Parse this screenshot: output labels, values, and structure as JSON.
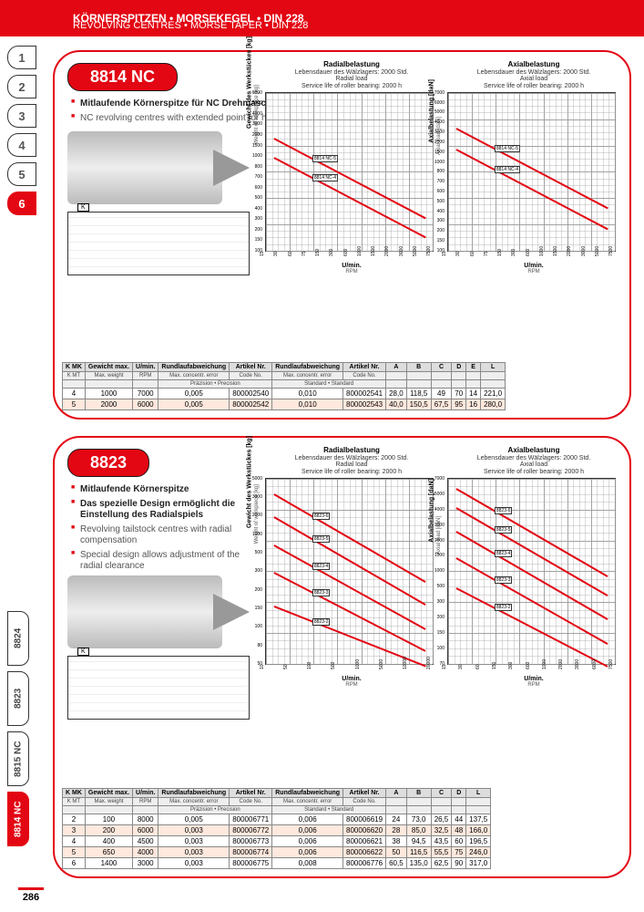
{
  "header": {
    "line1": "KÖRNERSPITZEN • MORSEKEGEL • DIN 228",
    "line2": "REVOLVING CENTRES • MORSE TAPER • DIN 228"
  },
  "nav_numbers": [
    "1",
    "2",
    "3",
    "4",
    "5",
    "6"
  ],
  "nav_selected": "6",
  "vtabs": [
    "8824",
    "8823",
    "8815 NC",
    "8814 NC"
  ],
  "vtab_selected": "8814 NC",
  "page_number": "286",
  "card1": {
    "badge": "8814 NC",
    "bullets": [
      {
        "text": "Mitlaufende Körnerspitze für NC Drehmaschinen",
        "bold": true
      },
      {
        "text": "NC revolving centres with extended point for high speeds",
        "bold": false
      }
    ],
    "chart_radial": {
      "title": "Radialbelastung",
      "sub1": "Lebensdauer des Wälzlagers: 2000 Std.",
      "sub2": "Radial load",
      "sub3": "Service life of roller bearing: 2000 h",
      "ylabel": "Gewicht des Werkstückes [kg]",
      "ylabel2": "Weight of workpiece [kg]",
      "xlabel": "U/min.",
      "xlabel2": "RPM",
      "yticks": [
        "100",
        "150",
        "200",
        "300",
        "400",
        "500",
        "600",
        "700",
        "800",
        "1000",
        "1500",
        "2000",
        "3000",
        "4000",
        "5000",
        "6000"
      ],
      "xticks": [
        "15",
        "30",
        "60",
        "75",
        "150",
        "300",
        "600",
        "1000",
        "1500",
        "2000",
        "3000",
        "5000",
        "7500"
      ],
      "series": [
        {
          "label": "8814 NC-5",
          "x0": 0.05,
          "y0": 0.28,
          "x1": 0.95,
          "y1": 0.78,
          "color": "#e30613"
        },
        {
          "label": "8814 NC-4",
          "x0": 0.05,
          "y0": 0.4,
          "x1": 0.95,
          "y1": 0.9,
          "color": "#e30613"
        }
      ]
    },
    "chart_axial": {
      "title": "Axialbelastung",
      "sub1": "Lebensdauer des Wälzlagers: 2000 Std.",
      "sub2": "Axial load",
      "sub3": "Service life of roller bearing: 2000 h",
      "ylabel": "Axialbelastung [daN]",
      "ylabel2": "Axial load [daN]",
      "xlabel": "U/min.",
      "xlabel2": "RPM",
      "yticks": [
        "100",
        "150",
        "200",
        "300",
        "400",
        "500",
        "600",
        "700",
        "800",
        "1000",
        "1500",
        "2000",
        "3000",
        "4000",
        "5000",
        "6000",
        "7000"
      ],
      "xticks": [
        "15",
        "30",
        "60",
        "75",
        "150",
        "300",
        "600",
        "1000",
        "1500",
        "2000",
        "3000",
        "5000",
        "7500"
      ],
      "series": [
        {
          "label": "8814 NC-5",
          "x0": 0.05,
          "y0": 0.22,
          "x1": 0.95,
          "y1": 0.72,
          "color": "#e30613"
        },
        {
          "label": "8814 NC-4",
          "x0": 0.05,
          "y0": 0.35,
          "x1": 0.95,
          "y1": 0.85,
          "color": "#e30613"
        }
      ]
    },
    "table": {
      "head1": [
        "K MK",
        "Gewicht max.",
        "U/min.",
        "Rundlaufabweichung",
        "Artikel Nr.",
        "Rundlaufabweichung",
        "Artikel Nr.",
        "A",
        "B",
        "C",
        "D",
        "E",
        "L"
      ],
      "head2": [
        "K MT",
        "Max. weight",
        "RPM",
        "Max. concentr. error",
        "Code No.",
        "Max. concentr. error",
        "Code No.",
        "",
        "",
        "",
        "",
        "",
        ""
      ],
      "head3": [
        "",
        "",
        "",
        "Präzision • Precision",
        "",
        "Standard • Standard",
        "",
        "",
        "",
        "",
        "",
        "",
        ""
      ],
      "rows": [
        [
          "4",
          "1000",
          "7000",
          "0,005",
          "800002540",
          "0,010",
          "800002541",
          "28,0",
          "118,5",
          "49",
          "70",
          "14",
          "221,0"
        ],
        [
          "5",
          "2000",
          "6000",
          "0,005",
          "800002542",
          "0,010",
          "800002543",
          "40,0",
          "150,5",
          "67,5",
          "95",
          "16",
          "280,0"
        ]
      ]
    }
  },
  "card2": {
    "badge": "8823",
    "bullets": [
      {
        "text": "Mitlaufende Körnerspitze",
        "bold": true
      },
      {
        "text": "Das spezielle Design ermöglicht die Einstellung des Radialspiels",
        "bold": true
      },
      {
        "text": "Revolving tailstock centres with radial compensation",
        "bold": false
      },
      {
        "text": "Special design allows adjustment of the radial clearance",
        "bold": false
      }
    ],
    "chart_radial": {
      "title": "Radialbelastung",
      "sub1": "Lebensdauer des Wälzlagers: 2000 Std.",
      "sub2": "Radial load",
      "sub3": "Service life of roller bearing: 2000 h",
      "ylabel": "Gewicht des Werkstückes [kg]",
      "ylabel2": "Weight of workpiece [kg]",
      "xlabel": "U/min.",
      "xlabel2": "RPM",
      "yticks": [
        "50",
        "80",
        "100",
        "150",
        "200",
        "300",
        "500",
        "1000",
        "2000",
        "3000",
        "5000"
      ],
      "xticks": [
        "10",
        "50",
        "100",
        "500",
        "1000",
        "5000",
        "10000",
        "20000"
      ],
      "series": [
        {
          "label": "8823-6",
          "x0": 0.05,
          "y0": 0.08,
          "x1": 0.95,
          "y1": 0.55,
          "color": "#e30613"
        },
        {
          "label": "8823-5",
          "x0": 0.05,
          "y0": 0.2,
          "x1": 0.95,
          "y1": 0.67,
          "color": "#e30613"
        },
        {
          "label": "8823-4",
          "x0": 0.05,
          "y0": 0.35,
          "x1": 0.95,
          "y1": 0.8,
          "color": "#e30613"
        },
        {
          "label": "8823-3",
          "x0": 0.05,
          "y0": 0.5,
          "x1": 0.95,
          "y1": 0.92,
          "color": "#e30613"
        },
        {
          "label": "8823-2",
          "x0": 0.05,
          "y0": 0.68,
          "x1": 0.95,
          "y1": 1.0,
          "color": "#e30613"
        }
      ]
    },
    "chart_axial": {
      "title": "Axialbelastung",
      "sub1": "Lebensdauer des Wälzlagers: 2000 Std.",
      "sub2": "Axial load",
      "sub3": "Service life of roller bearing: 2000 h",
      "ylabel": "Axialbelastung [daN]",
      "ylabel2": "Axial load [daN]",
      "xlabel": "U/min.",
      "xlabel2": "RPM",
      "yticks": [
        "70",
        "100",
        "150",
        "200",
        "300",
        "500",
        "1000",
        "1500",
        "2000",
        "3000",
        "4000",
        "5000",
        "7000"
      ],
      "xticks": [
        "15",
        "30",
        "60",
        "150",
        "300",
        "600",
        "1000",
        "2000",
        "3000",
        "6000",
        "7500"
      ],
      "series": [
        {
          "label": "8823-6",
          "x0": 0.05,
          "y0": 0.05,
          "x1": 0.95,
          "y1": 0.52,
          "color": "#e30613"
        },
        {
          "label": "8823-5",
          "x0": 0.05,
          "y0": 0.15,
          "x1": 0.95,
          "y1": 0.62,
          "color": "#e30613"
        },
        {
          "label": "8823-4",
          "x0": 0.05,
          "y0": 0.28,
          "x1": 0.95,
          "y1": 0.75,
          "color": "#e30613"
        },
        {
          "label": "8823-3",
          "x0": 0.05,
          "y0": 0.42,
          "x1": 0.95,
          "y1": 0.88,
          "color": "#e30613"
        },
        {
          "label": "8823-2",
          "x0": 0.05,
          "y0": 0.58,
          "x1": 0.95,
          "y1": 1.0,
          "color": "#e30613"
        }
      ]
    },
    "table": {
      "head1": [
        "K MK",
        "Gewicht max.",
        "U/min.",
        "Rundlaufabweichung",
        "Artikel Nr.",
        "Rundlaufabweichung",
        "Artikel Nr.",
        "A",
        "B",
        "C",
        "D",
        "L"
      ],
      "head2": [
        "K MT",
        "Max. weight",
        "RPM",
        "Max. concentr. error",
        "Code No.",
        "Max. concentr. error",
        "Code No.",
        "",
        "",
        "",
        "",
        ""
      ],
      "head3": [
        "",
        "",
        "",
        "Präzision • Precision",
        "",
        "Standard • Standard",
        "",
        "",
        "",
        "",
        "",
        ""
      ],
      "rows": [
        [
          "2",
          "100",
          "8000",
          "0,005",
          "800006771",
          "0,006",
          "800006619",
          "24",
          "73,0",
          "26,5",
          "44",
          "137,5"
        ],
        [
          "3",
          "200",
          "6000",
          "0,003",
          "800006772",
          "0,006",
          "800006620",
          "28",
          "85,0",
          "32,5",
          "48",
          "166,0"
        ],
        [
          "4",
          "400",
          "4500",
          "0,003",
          "800006773",
          "0,006",
          "800006621",
          "38",
          "94,5",
          "43,5",
          "60",
          "196,5"
        ],
        [
          "5",
          "650",
          "4000",
          "0,003",
          "800006774",
          "0,006",
          "800006622",
          "50",
          "116,5",
          "55,5",
          "75",
          "246,0"
        ],
        [
          "6",
          "1400",
          "3000",
          "0,003",
          "800006775",
          "0,008",
          "800006776",
          "60,5",
          "135,0",
          "62,5",
          "90",
          "317,0"
        ]
      ]
    }
  }
}
